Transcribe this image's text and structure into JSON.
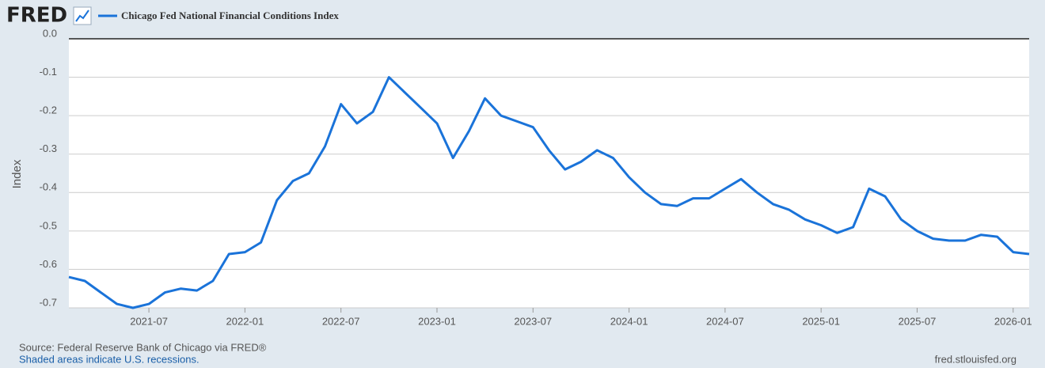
{
  "logo": "FRED",
  "chart_data": {
    "type": "line",
    "y_label": "Index",
    "source": "Source: Federal Reserve Bank of Chicago via FRED®",
    "note": "Shaded areas indicate U.S. recessions.",
    "site": "fred.stlouisfed.org",
    "xlim": [
      "2021-02",
      "2026-02"
    ],
    "xticks": [
      "2021-07",
      "2022-01",
      "2022-07",
      "2023-01",
      "2023-07",
      "2024-01",
      "2024-07",
      "2025-01",
      "2025-07",
      "2026-01"
    ],
    "ylim": [
      -0.7,
      0
    ],
    "yticks": [
      {
        "value": 0,
        "label": "0.0"
      },
      -0.1,
      -0.2,
      -0.3,
      -0.4,
      -0.5,
      -0.6,
      -0.7
    ],
    "grid": true,
    "x": [
      "2021-02",
      "2021-03",
      "2021-04",
      "2021-05",
      "2021-06",
      "2021-07",
      "2021-08",
      "2021-09",
      "2021-10",
      "2021-11",
      "2021-12",
      "2022-01",
      "2022-02",
      "2022-03",
      "2022-04",
      "2022-05",
      "2022-06",
      "2022-07",
      "2022-08",
      "2022-09",
      "2022-10",
      "2022-11",
      "2022-12",
      "2023-01",
      "2023-02",
      "2023-03",
      "2023-04",
      "2023-05",
      "2023-06",
      "2023-07",
      "2023-08",
      "2023-09",
      "2023-10",
      "2023-11",
      "2023-12",
      "2024-01",
      "2024-02",
      "2024-03",
      "2024-04",
      "2024-05",
      "2024-06",
      "2024-07",
      "2024-08",
      "2024-09",
      "2024-10",
      "2024-11",
      "2024-12",
      "2025-01",
      "2025-02",
      "2025-03",
      "2025-04",
      "2025-05",
      "2025-06",
      "2025-07",
      "2025-08",
      "2025-09",
      "2025-10",
      "2025-11",
      "2025-12",
      "2026-01",
      "2026-02"
    ],
    "series": [
      {
        "name": "Chicago Fed National Financial Conditions Index",
        "color": "#1a73d9",
        "values": [
          -0.62,
          -0.63,
          -0.66,
          -0.69,
          -0.7,
          -0.69,
          -0.66,
          -0.65,
          -0.655,
          -0.63,
          -0.56,
          -0.555,
          -0.53,
          -0.42,
          -0.37,
          -0.35,
          -0.28,
          -0.17,
          -0.22,
          -0.19,
          -0.1,
          -0.14,
          -0.18,
          -0.22,
          -0.31,
          -0.24,
          -0.155,
          -0.2,
          -0.215,
          -0.23,
          -0.29,
          -0.34,
          -0.32,
          -0.29,
          -0.31,
          -0.36,
          -0.4,
          -0.43,
          -0.435,
          -0.415,
          -0.415,
          -0.39,
          -0.365,
          -0.4,
          -0.43,
          -0.445,
          -0.47,
          -0.485,
          -0.505,
          -0.49,
          -0.39,
          -0.41,
          -0.47,
          -0.5,
          -0.52,
          -0.525,
          -0.525,
          -0.51,
          -0.515,
          -0.555,
          -0.56
        ]
      }
    ]
  }
}
